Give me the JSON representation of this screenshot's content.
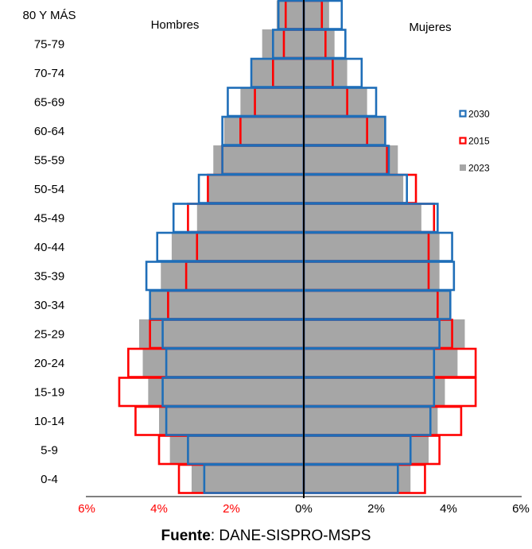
{
  "chart_data": {
    "type": "bar",
    "orientation": "horizontal-population-pyramid",
    "categories": [
      "0-4",
      "5-9",
      "10-14",
      "15-19",
      "20-24",
      "25-29",
      "30-34",
      "35-39",
      "40-44",
      "45-49",
      "50-54",
      "55-59",
      "60-64",
      "65-69",
      "70-74",
      "75-79",
      "80 Y MÁS"
    ],
    "left_label": "Hombres",
    "right_label": "Mujeres",
    "xlim": [
      -6,
      6
    ],
    "x_ticks": [
      "6%",
      "4%",
      "2%",
      "0%",
      "2%",
      "4%",
      "6%"
    ],
    "x_tick_colors": [
      "#ff0000",
      "#ff0000",
      "#ff0000",
      "#000000",
      "#000000",
      "#000000",
      "#000000"
    ],
    "series": [
      {
        "name": "2030",
        "style": "outline",
        "color": "#1f6eb8",
        "hombres": [
          2.75,
          3.2,
          3.8,
          3.9,
          3.8,
          3.9,
          4.25,
          4.35,
          4.05,
          3.6,
          2.9,
          2.25,
          2.25,
          2.1,
          1.45,
          0.85,
          0.7
        ],
        "mujeres": [
          2.6,
          2.95,
          3.5,
          3.6,
          3.6,
          3.75,
          4.05,
          4.15,
          4.1,
          3.7,
          2.85,
          2.35,
          2.25,
          2.0,
          1.6,
          1.15,
          1.05
        ]
      },
      {
        "name": "2015",
        "style": "outline",
        "color": "#ff0000",
        "hombres": [
          3.45,
          4.0,
          4.65,
          5.1,
          4.85,
          4.25,
          3.75,
          3.25,
          2.95,
          3.2,
          2.65,
          2.25,
          1.75,
          1.35,
          0.85,
          0.55,
          0.5
        ],
        "mujeres": [
          3.35,
          3.75,
          4.35,
          4.75,
          4.75,
          4.1,
          3.7,
          3.45,
          3.45,
          3.6,
          3.1,
          2.3,
          1.75,
          1.2,
          0.8,
          0.6,
          0.5
        ]
      },
      {
        "name": "2023",
        "style": "filled",
        "color": "#a6a6a6",
        "hombres": [
          3.1,
          3.7,
          4.0,
          4.3,
          4.45,
          4.55,
          4.25,
          3.95,
          3.65,
          2.95,
          2.65,
          2.5,
          2.2,
          1.75,
          1.45,
          1.15,
          0.75
        ],
        "mujeres": [
          2.95,
          3.45,
          3.7,
          3.9,
          4.25,
          4.45,
          4.05,
          3.75,
          3.75,
          3.25,
          2.75,
          2.6,
          2.25,
          1.75,
          1.2,
          0.85,
          0.7
        ]
      }
    ],
    "legend": [
      {
        "name": "2030",
        "color": "#1f6eb8",
        "style": "outline"
      },
      {
        "name": "2015",
        "color": "#ff0000",
        "style": "outline"
      },
      {
        "name": "2023",
        "color": "#a6a6a6",
        "style": "filled"
      }
    ],
    "legend_position": "right"
  },
  "source": {
    "prefix": "Fuente",
    "text": ": DANE-SISPRO-MSPS"
  }
}
